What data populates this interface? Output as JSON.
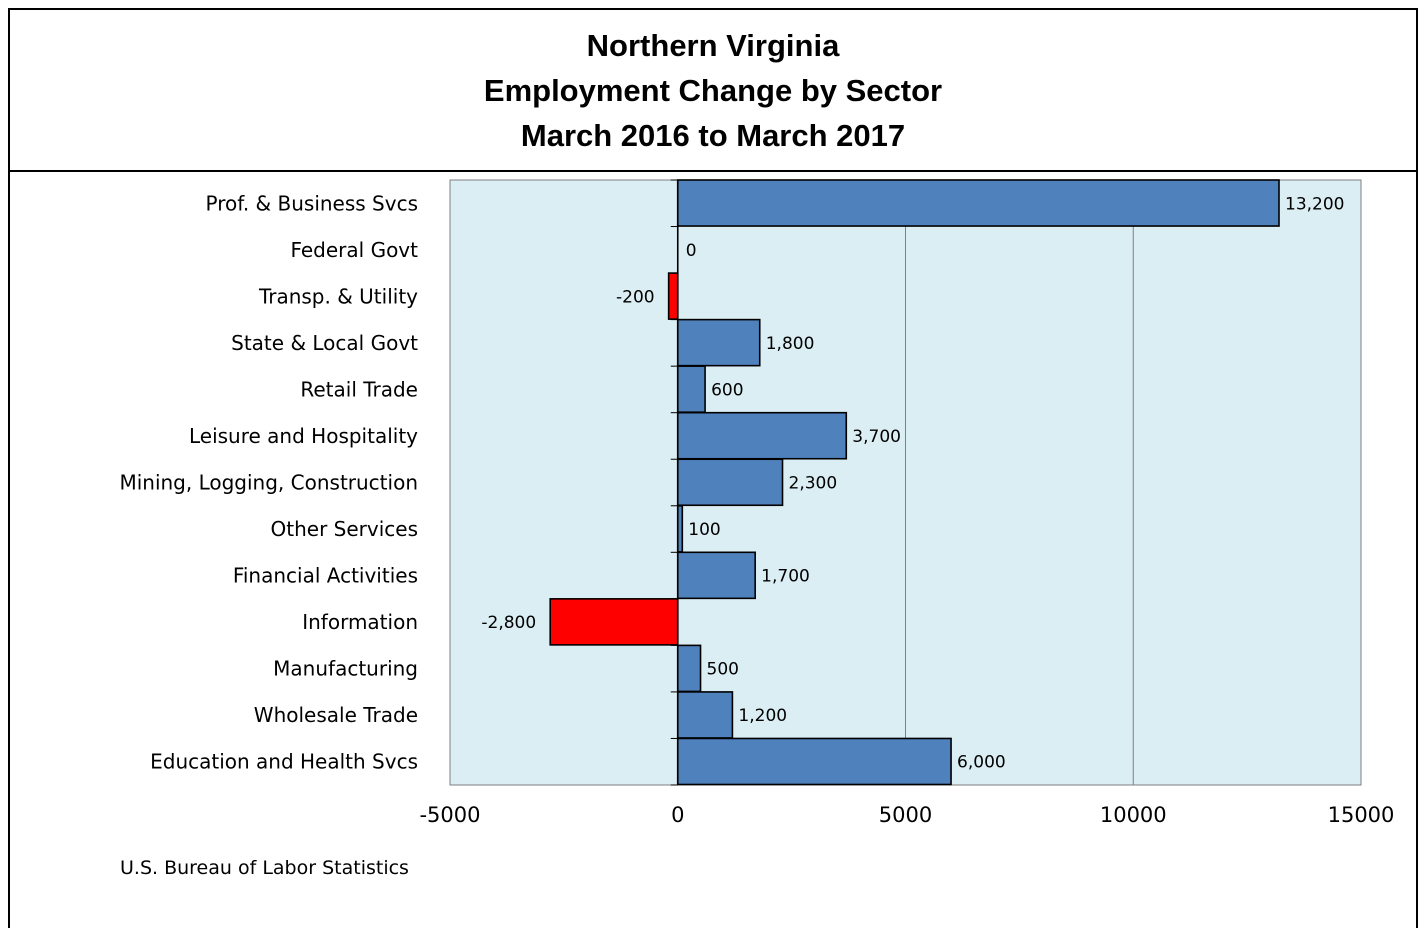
{
  "title_lines": [
    "Northern Virginia",
    "Employment Change by Sector",
    "March 2016 to March 2017"
  ],
  "source": "U.S. Bureau of Labor Statistics",
  "colors": {
    "positive": "#4f81bd",
    "negative": "#ff0000",
    "plot_background": "#dbeef4",
    "gridline": "#808080"
  },
  "chart_data": {
    "type": "bar",
    "orientation": "horizontal",
    "categories": [
      "Prof. & Business Svcs",
      "Federal Govt",
      "Transp. & Utility",
      "State & Local Govt",
      "Retail Trade",
      "Leisure and Hospitality",
      "Mining, Logging, Construction",
      "Other Services",
      "Financial Activities",
      "Information",
      "Manufacturing",
      "Wholesale Trade",
      "Education and Health Svcs"
    ],
    "values": [
      13200,
      0,
      -200,
      1800,
      600,
      3700,
      2300,
      100,
      1700,
      -2800,
      500,
      1200,
      6000
    ],
    "value_labels": [
      "13,200",
      "0",
      "-200",
      "1,800",
      "600",
      "3,700",
      "2,300",
      "100",
      "1,700",
      "-2,800",
      "500",
      "1,200",
      "6,000"
    ],
    "xlim": [
      -5000,
      15000
    ],
    "xticks": [
      -5000,
      0,
      5000,
      10000,
      15000
    ],
    "xtick_labels": [
      "-5000",
      "0",
      "5000",
      "10000",
      "15000"
    ],
    "grid": true
  }
}
